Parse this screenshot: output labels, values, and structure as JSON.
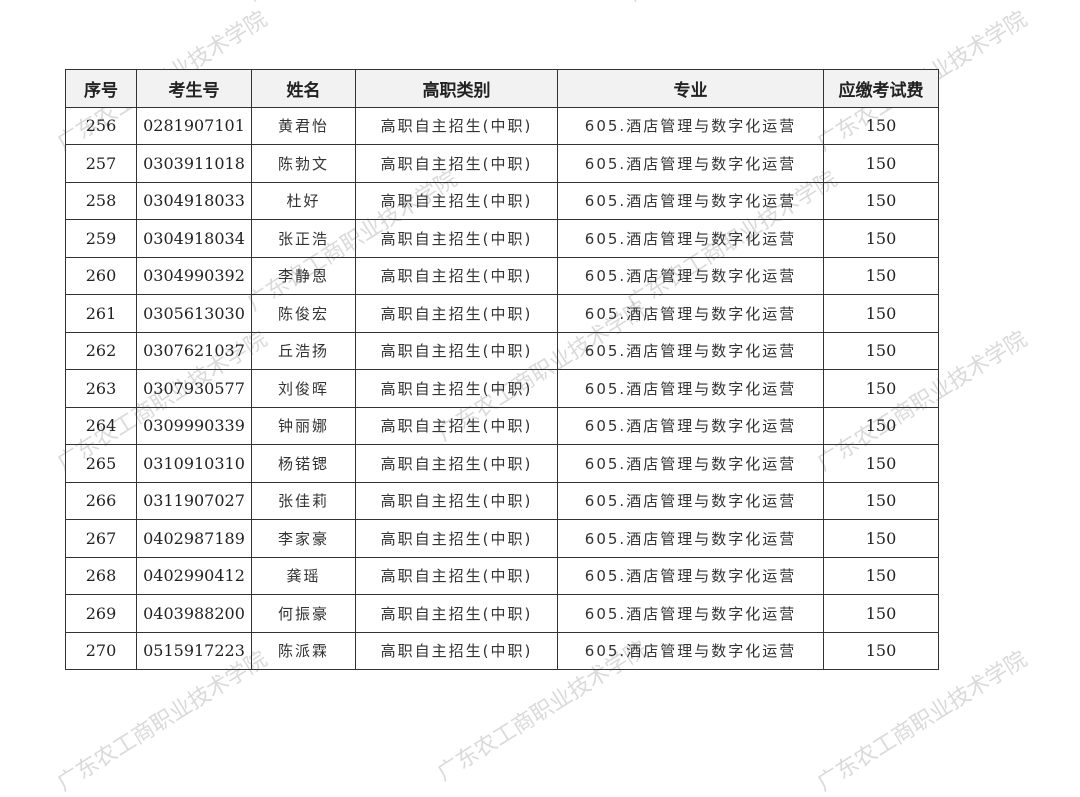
{
  "watermark": "广东农工商职业技术学院",
  "headers": [
    "序号",
    "考生号",
    "姓名",
    "高职类别",
    "专业",
    "应缴考试费"
  ],
  "rows": [
    [
      "256",
      "0281907101",
      "黄君怡",
      "高职自主招生(中职)",
      "605.酒店管理与数字化运营",
      "150"
    ],
    [
      "257",
      "0303911018",
      "陈勃文",
      "高职自主招生(中职)",
      "605.酒店管理与数字化运营",
      "150"
    ],
    [
      "258",
      "0304918033",
      "杜好",
      "高职自主招生(中职)",
      "605.酒店管理与数字化运营",
      "150"
    ],
    [
      "259",
      "0304918034",
      "张正浩",
      "高职自主招生(中职)",
      "605.酒店管理与数字化运营",
      "150"
    ],
    [
      "260",
      "0304990392",
      "李静恩",
      "高职自主招生(中职)",
      "605.酒店管理与数字化运营",
      "150"
    ],
    [
      "261",
      "0305613030",
      "陈俊宏",
      "高职自主招生(中职)",
      "605.酒店管理与数字化运营",
      "150"
    ],
    [
      "262",
      "0307621037",
      "丘浩扬",
      "高职自主招生(中职)",
      "605.酒店管理与数字化运营",
      "150"
    ],
    [
      "263",
      "0307930577",
      "刘俊晖",
      "高职自主招生(中职)",
      "605.酒店管理与数字化运营",
      "150"
    ],
    [
      "264",
      "0309990339",
      "钟丽娜",
      "高职自主招生(中职)",
      "605.酒店管理与数字化运营",
      "150"
    ],
    [
      "265",
      "0310910310",
      "杨锘锶",
      "高职自主招生(中职)",
      "605.酒店管理与数字化运营",
      "150"
    ],
    [
      "266",
      "0311907027",
      "张佳莉",
      "高职自主招生(中职)",
      "605.酒店管理与数字化运营",
      "150"
    ],
    [
      "267",
      "0402987189",
      "李家豪",
      "高职自主招生(中职)",
      "605.酒店管理与数字化运营",
      "150"
    ],
    [
      "268",
      "0402990412",
      "龚瑶",
      "高职自主招生(中职)",
      "605.酒店管理与数字化运营",
      "150"
    ],
    [
      "269",
      "0403988200",
      "何振豪",
      "高职自主招生(中职)",
      "605.酒店管理与数字化运营",
      "150"
    ],
    [
      "270",
      "0515917223",
      "陈派霖",
      "高职自主招生(中职)",
      "605.酒店管理与数字化运营",
      "150"
    ]
  ]
}
